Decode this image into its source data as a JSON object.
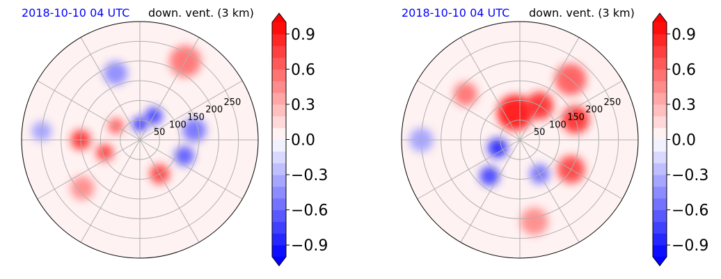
{
  "chart_data": [
    {
      "type": "heatmap",
      "projection": "polar",
      "title_left": "2018-10-10 04 UTC",
      "title_right": "down. vent. (3 km)",
      "radial_ticks": [
        "50",
        "100",
        "150",
        "200",
        "250"
      ],
      "radial_tick_values": [
        50,
        100,
        150,
        200,
        250
      ],
      "rmax": 300,
      "angular_gridlines_deg": [
        0,
        30,
        60,
        90,
        120,
        150,
        180,
        210,
        240,
        270,
        300,
        330
      ],
      "colorbar": {
        "vmin": -1.0,
        "vmax": 1.0,
        "ticks": [
          "−0.9",
          "−0.6",
          "−0.3",
          "0.0",
          "0.3",
          "0.6",
          "0.9"
        ],
        "tick_values": [
          -0.9,
          -0.6,
          -0.3,
          0.0,
          0.3,
          0.6,
          0.9
        ],
        "colormap": "bwr",
        "extend": "both"
      },
      "features": [
        {
          "r": 150,
          "theta": 180,
          "value": 0.9,
          "extent": 25
        },
        {
          "r": 95,
          "theta": 200,
          "value": 0.8,
          "extent": 22
        },
        {
          "r": 70,
          "theta": 150,
          "value": 0.7,
          "extent": 20
        },
        {
          "r": 40,
          "theta": 90,
          "value": -0.9,
          "extent": 18
        },
        {
          "r": 70,
          "theta": 60,
          "value": -0.8,
          "extent": 22
        },
        {
          "r": 120,
          "theta": 340,
          "value": -0.7,
          "extent": 25
        },
        {
          "r": 100,
          "theta": 300,
          "value": 0.8,
          "extent": 25
        },
        {
          "r": 190,
          "theta": 220,
          "value": 0.5,
          "extent": 30
        },
        {
          "r": 250,
          "theta": 175,
          "value": -0.4,
          "extent": 25
        },
        {
          "r": 230,
          "theta": 60,
          "value": 0.6,
          "extent": 40
        },
        {
          "r": 180,
          "theta": 110,
          "value": -0.5,
          "extent": 30
        },
        {
          "r": 140,
          "theta": 10,
          "value": -0.6,
          "extent": 30
        }
      ]
    },
    {
      "type": "heatmap",
      "projection": "polar",
      "title_left": "2018-10-10 04 UTC",
      "title_right": "down. vent. (3 km)",
      "radial_ticks": [
        "50",
        "100",
        "150",
        "200",
        "250"
      ],
      "radial_tick_values": [
        50,
        100,
        150,
        200,
        250
      ],
      "rmax": 300,
      "angular_gridlines_deg": [
        0,
        30,
        60,
        90,
        120,
        150,
        180,
        210,
        240,
        270,
        300,
        330
      ],
      "colorbar": {
        "vmin": -1.0,
        "vmax": 1.0,
        "ticks": [
          "−0.9",
          "−0.6",
          "−0.3",
          "0.0",
          "0.3",
          "0.6",
          "0.9"
        ],
        "tick_values": [
          -0.9,
          -0.6,
          -0.3,
          0.0,
          0.3,
          0.6,
          0.9
        ],
        "colormap": "bwr",
        "extend": "both"
      },
      "features": [
        {
          "r": 70,
          "theta": 100,
          "value": 1.0,
          "extent": 45
        },
        {
          "r": 100,
          "theta": 60,
          "value": 0.9,
          "extent": 35
        },
        {
          "r": 150,
          "theta": 20,
          "value": 0.9,
          "extent": 35
        },
        {
          "r": 150,
          "theta": 330,
          "value": 0.8,
          "extent": 35
        },
        {
          "r": 60,
          "theta": 200,
          "value": -0.9,
          "extent": 25
        },
        {
          "r": 120,
          "theta": 230,
          "value": -0.8,
          "extent": 25
        },
        {
          "r": 200,
          "theta": 50,
          "value": 0.7,
          "extent": 40
        },
        {
          "r": 210,
          "theta": 280,
          "value": 0.5,
          "extent": 35
        },
        {
          "r": 250,
          "theta": 180,
          "value": -0.4,
          "extent": 30
        },
        {
          "r": 100,
          "theta": 300,
          "value": -0.6,
          "extent": 25
        },
        {
          "r": 180,
          "theta": 140,
          "value": 0.6,
          "extent": 30
        }
      ]
    }
  ]
}
